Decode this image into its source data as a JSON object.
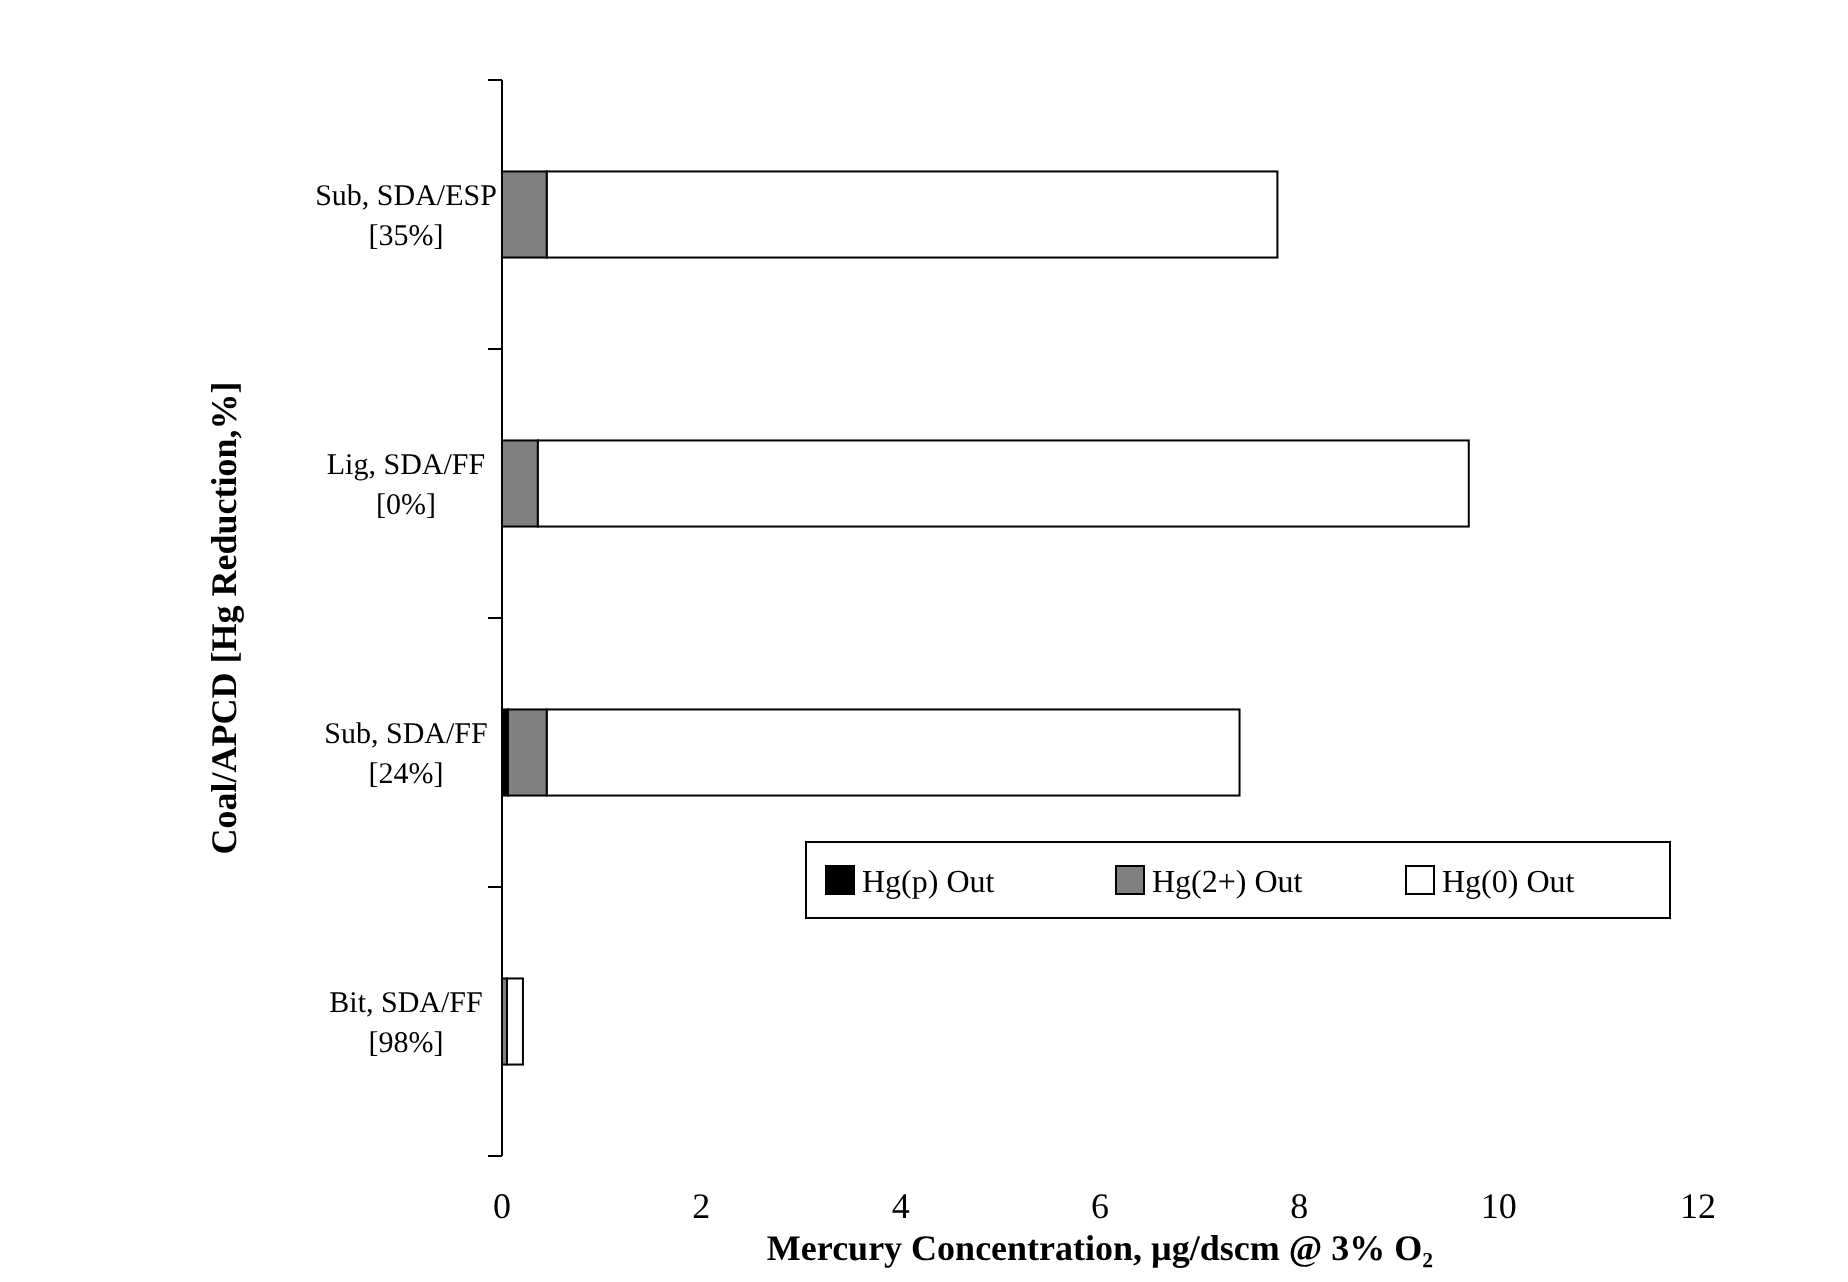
{
  "chart_data": {
    "type": "bar",
    "orientation": "horizontal",
    "stacked": true,
    "categories": [
      "Sub, SDA/ESP\n[35%]",
      "Lig, SDA/FF\n[0%]",
      "Sub, SDA/FF\n[24%]",
      "Bit, SDA/FF\n[98%]"
    ],
    "series": [
      {
        "name": "Hg(p) Out",
        "color": "#000000",
        "values": [
          null,
          0,
          0.06,
          null
        ]
      },
      {
        "name": "Hg(2+) Out",
        "color": "#808080",
        "values": [
          0.45,
          0.36,
          0.39,
          0.05
        ]
      },
      {
        "name": "Hg(0) Out",
        "color": "#ffffff",
        "values": [
          7.33,
          9.34,
          6.95,
          0.16
        ]
      }
    ],
    "xlim": [
      0,
      12
    ],
    "xticks": [
      0,
      2,
      4,
      6,
      8,
      10,
      12
    ],
    "xlabel": "Mercury Concentration, µg/dscm @ 3% O₂",
    "ylabel": "Coal/APCD [Hg Reduction,%]",
    "legend": "bottom right",
    "grid": false
  }
}
